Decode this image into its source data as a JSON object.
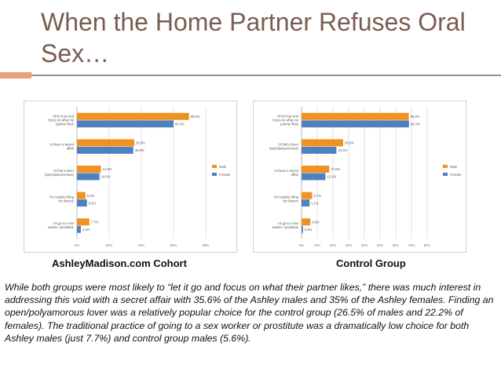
{
  "slide": {
    "title": "When the Home Partner Refuses Oral Sex…",
    "caption": "While both groups were most likely to “let it go and focus on what their partner likes,” there was much interest in addressing this void with a secret affair with 35.6% of the Ashley males and 35% of the Ashley females. Finding an open/polyamorous lover was a relatively popular choice for the control group (26.5% of males and 22.2% of females). The traditional practice of going to a sex worker or prostitute was a dramatically low choice for both Ashley males (just 7.7%) and control group males (5.6%)."
  },
  "colors": {
    "male": "#f0921f",
    "female": "#4f81bd",
    "title": "#7a5c50",
    "accent": "#e9a075"
  },
  "chart_data": [
    {
      "type": "bar",
      "orientation": "horizontal",
      "label": "AshleyMadison.com Cohort",
      "categories": [
        "I'd let it go and focus on what my partner likes",
        "I'd have a secret affair",
        "I'd find a lover (open/polyamorous)",
        "I'd consider filing for divorce",
        "I'd go to a sex worker / prostitute"
      ],
      "series": [
        {
          "name": "Male",
          "values": [
            69.6,
            35.6,
            14.9,
            5.3,
            7.7
          ]
        },
        {
          "name": "Female",
          "values": [
            60.0,
            35.0,
            14.0,
            6.2,
            2.4
          ]
        }
      ],
      "xlim": [
        0,
        80
      ],
      "ticks": [
        "0%",
        "20%",
        "40%",
        "60%",
        "80%"
      ],
      "grid": true,
      "legend": "right"
    },
    {
      "type": "bar",
      "orientation": "horizontal",
      "label": "Control Group",
      "categories": [
        "I'd let it go and focus on what my partner likes",
        "I'd find a lover (open/polyamorous)",
        "I'd have a secret affair",
        "I'd consider filing for divorce",
        "I'd go to a sex worker / prostitute"
      ],
      "series": [
        {
          "name": "Male",
          "values": [
            68.3,
            26.5,
            17.6,
            6.7,
            5.6
          ]
        },
        {
          "name": "Female",
          "values": [
            68.4,
            22.2,
            15.2,
            5.1,
            0.9
          ]
        }
      ],
      "xlim": [
        0,
        80
      ],
      "ticks": [
        "0%",
        "10%",
        "20%",
        "30%",
        "40%",
        "50%",
        "60%",
        "70%",
        "80%"
      ],
      "grid": true,
      "legend": "right"
    }
  ]
}
